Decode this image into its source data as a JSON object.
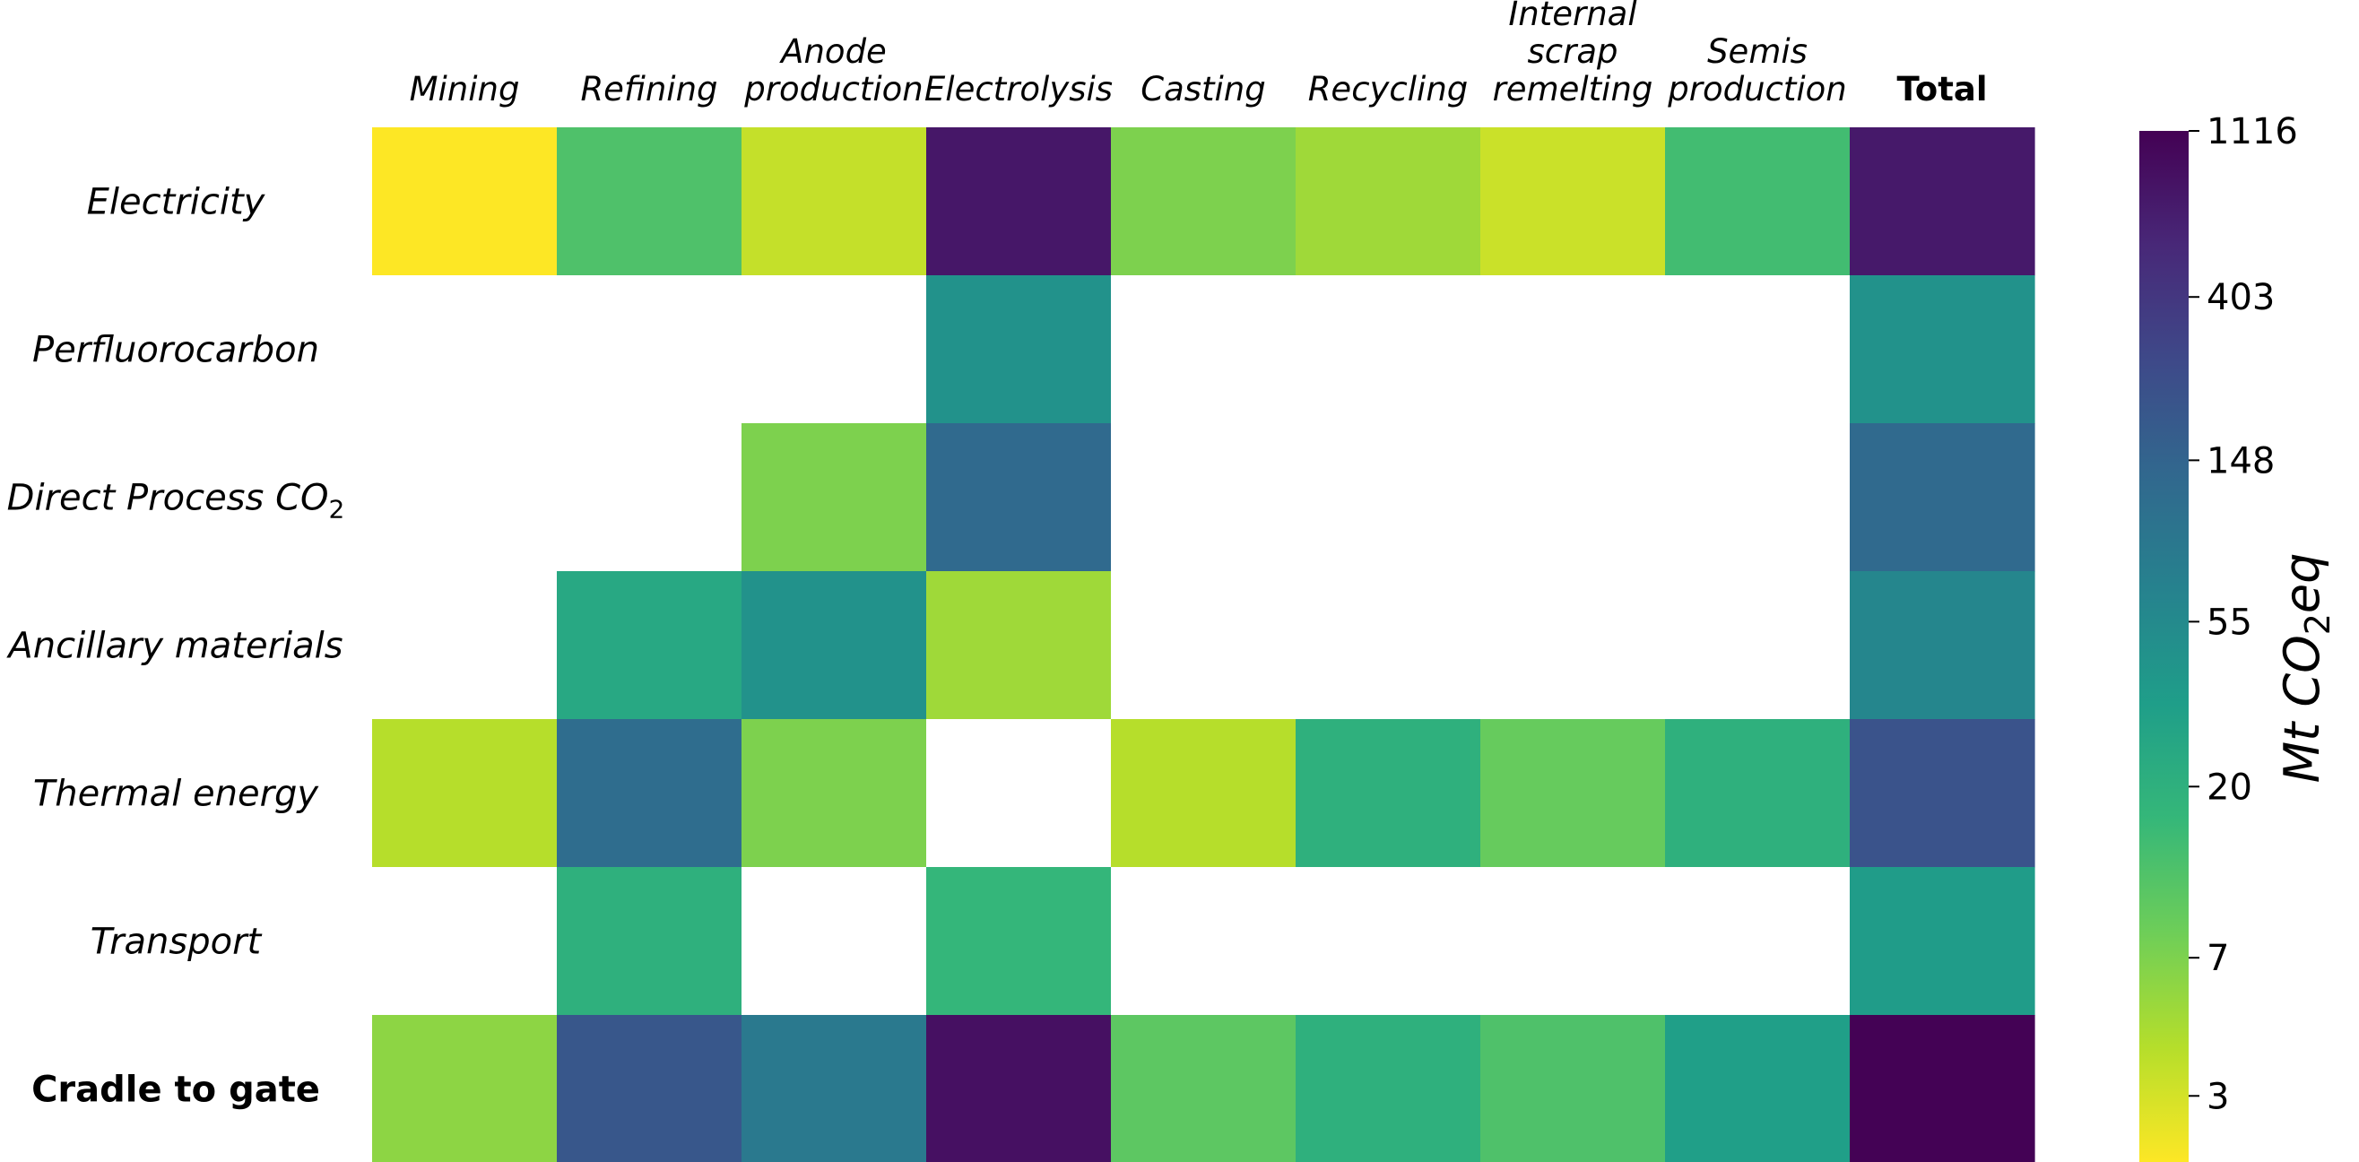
{
  "chart_data": {
    "type": "heatmap",
    "columns": [
      [
        "Mining"
      ],
      [
        "Refining"
      ],
      [
        "Anode",
        "production"
      ],
      [
        "Electrolysis"
      ],
      [
        "Casting"
      ],
      [
        "Recycling"
      ],
      [
        "Internal",
        "scrap",
        "remelting"
      ],
      [
        "Semis",
        "production"
      ],
      [
        "Total"
      ]
    ],
    "rows": [
      {
        "label": "Electricity",
        "subscript": ""
      },
      {
        "label": "Perfluorocarbon",
        "subscript": ""
      },
      {
        "label": "Direct Process CO",
        "subscript": "2"
      },
      {
        "label": "Ancillary materials",
        "subscript": ""
      },
      {
        "label": "Thermal energy",
        "subscript": ""
      },
      {
        "label": "Transport",
        "subscript": ""
      },
      {
        "label": "Cradle to gate",
        "subscript": ""
      }
    ],
    "bold_row_index": 6,
    "bold_column_index": 8,
    "values": [
      [
        2,
        12,
        3.5,
        750,
        7,
        5,
        3.3,
        14,
        720
      ],
      [
        null,
        null,
        null,
        45,
        null,
        null,
        null,
        null,
        45
      ],
      [
        null,
        null,
        7,
        130,
        null,
        null,
        null,
        null,
        130
      ],
      [
        null,
        25,
        45,
        5,
        null,
        null,
        null,
        null,
        60
      ],
      [
        4,
        120,
        7,
        null,
        4,
        20,
        9,
        20,
        220
      ],
      [
        null,
        20,
        null,
        17,
        null,
        null,
        null,
        null,
        35
      ],
      [
        6,
        200,
        85,
        850,
        10,
        20,
        12,
        32,
        1100
      ]
    ],
    "colorbar": {
      "scale": "log",
      "min": 2,
      "max": 1116,
      "ticks": [
        3,
        7,
        20,
        55,
        148,
        403,
        1116
      ],
      "title": "Mt CO",
      "title_subscript": "2",
      "title_suffix": "eq"
    },
    "colormap": "viridis_r",
    "colormap_stops": [
      "#fde725",
      "#b5de2b",
      "#6ece58",
      "#35b779",
      "#1f9e89",
      "#26828e",
      "#31688e",
      "#3e4989",
      "#482878",
      "#440154"
    ],
    "missing_color": "#ffffff"
  }
}
